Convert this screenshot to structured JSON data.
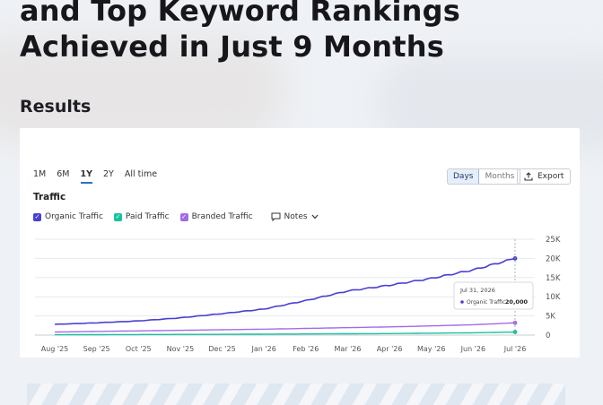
{
  "headline": {
    "line1": "and Top Keyword Rankings",
    "line2": "Achieved in Just 9 Months"
  },
  "section_title": "Results",
  "chart_panel": {
    "ranges": [
      "1M",
      "6M",
      "1Y",
      "2Y",
      "All time"
    ],
    "active_range": "1Y",
    "granularity": {
      "days": "Days",
      "months": "Months",
      "selected": "Days"
    },
    "export_label": "Export",
    "title": "Traffic",
    "legend": {
      "organic": "Organic Traffic",
      "paid": "Paid Traffic",
      "branded": "Branded Traffic",
      "notes": "Notes"
    },
    "tooltip": {
      "date": "Jul 31, 2026",
      "series": "Organic Traffic",
      "value": "20,000"
    },
    "icons": {
      "check": "check-icon",
      "notes": "speech-bubble-icon",
      "chevron": "chevron-down-icon",
      "export": "upload-icon"
    }
  },
  "chart_data": {
    "type": "line",
    "x": [
      "Aug '25",
      "Sep '25",
      "Oct '25",
      "Nov '25",
      "Dec '25",
      "Jan '26",
      "Feb '26",
      "Mar '26",
      "Apr '26",
      "May '26",
      "Jun '26",
      "Jul '26"
    ],
    "yticks": [
      "0",
      "5K",
      "10K",
      "15K",
      "20K",
      "25K"
    ],
    "ylim": [
      0,
      25000
    ],
    "grid": true,
    "series": [
      {
        "name": "Organic Traffic",
        "color": "#4a3fd4",
        "values": [
          2800,
          3200,
          3700,
          4500,
          5600,
          6800,
          9000,
          11500,
          13000,
          14800,
          17000,
          20000
        ]
      },
      {
        "name": "Paid Traffic",
        "color": "#17c2a0",
        "values": [
          100,
          120,
          150,
          180,
          200,
          250,
          300,
          350,
          400,
          500,
          600,
          800
        ]
      },
      {
        "name": "Branded Traffic",
        "color": "#a36be8",
        "values": [
          800,
          950,
          1100,
          1250,
          1400,
          1550,
          1750,
          1950,
          2150,
          2400,
          2700,
          3200
        ]
      }
    ]
  }
}
